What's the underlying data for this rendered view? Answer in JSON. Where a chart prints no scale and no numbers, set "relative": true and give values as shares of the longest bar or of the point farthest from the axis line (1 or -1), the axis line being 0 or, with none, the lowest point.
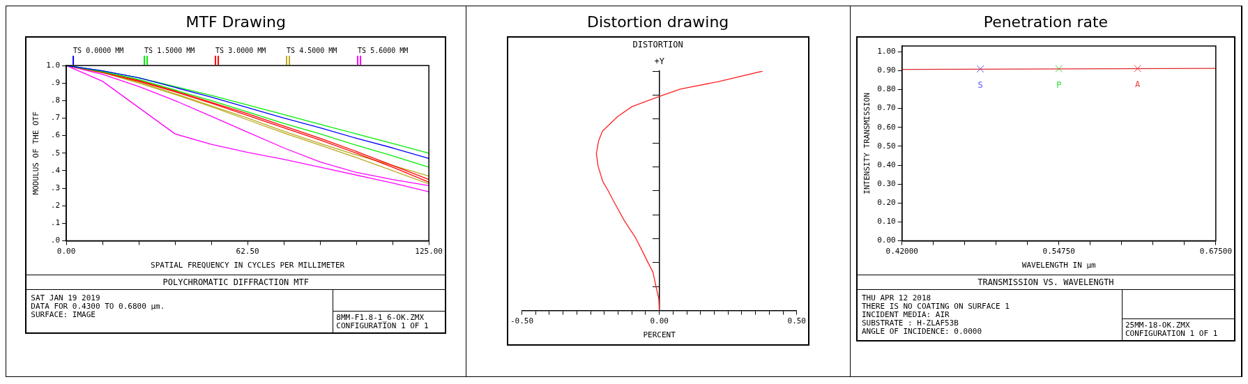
{
  "chart_data": [
    {
      "type": "line",
      "title": "MTF Drawing",
      "subtitle": "POLYCHROMATIC DIFFRACTION MTF",
      "xlabel": "SPATIAL FREQUENCY IN CYCLES PER MILLIMETER",
      "ylabel": "MODULUS OF THE OTF",
      "x": [
        0,
        12.5,
        25,
        37.5,
        50,
        62.5,
        75,
        87.5,
        100,
        112.5,
        125
      ],
      "series": [
        {
          "name": "TS 0.0000 MM",
          "color": "#0000ff",
          "values": [
            1,
            0.97,
            0.93,
            0.875,
            0.82,
            0.76,
            0.7,
            0.645,
            0.585,
            0.53,
            0.47
          ]
        },
        {
          "name": "TS 1.5000 MM",
          "color": "#00ee00",
          "values": [
            1,
            0.97,
            0.93,
            0.88,
            0.83,
            0.775,
            0.72,
            0.665,
            0.61,
            0.555,
            0.5
          ]
        },
        {
          "color": "#00ee00",
          "values": [
            1,
            0.965,
            0.92,
            0.86,
            0.8,
            0.735,
            0.67,
            0.61,
            0.545,
            0.485,
            0.42
          ]
        },
        {
          "name": "TS 3.0000 MM",
          "color": "#ff0000",
          "values": [
            1,
            0.965,
            0.915,
            0.855,
            0.79,
            0.725,
            0.655,
            0.585,
            0.51,
            0.43,
            0.35
          ]
        },
        {
          "color": "#ff0000",
          "values": [
            1,
            0.96,
            0.91,
            0.85,
            0.785,
            0.715,
            0.645,
            0.575,
            0.5,
            0.42,
            0.335
          ]
        },
        {
          "name": "TS 4.5000 MM",
          "color": "#bbaa22",
          "values": [
            1,
            0.96,
            0.905,
            0.84,
            0.77,
            0.7,
            0.625,
            0.555,
            0.49,
            0.43,
            0.37
          ]
        },
        {
          "color": "#bbaa22",
          "values": [
            1,
            0.96,
            0.9,
            0.835,
            0.765,
            0.69,
            0.615,
            0.545,
            0.475,
            0.4,
            0.325
          ]
        },
        {
          "name": "TS 5.6000 MM",
          "color": "#ff00ff",
          "values": [
            1,
            0.95,
            0.88,
            0.8,
            0.71,
            0.62,
            0.53,
            0.45,
            0.39,
            0.35,
            0.315
          ]
        },
        {
          "color": "#ff00ff",
          "values": [
            1,
            0.91,
            0.76,
            0.61,
            0.55,
            0.505,
            0.465,
            0.42,
            0.375,
            0.33,
            0.28
          ]
        }
      ],
      "xlim": [
        0,
        125
      ],
      "xticks": [
        {
          "value": 0,
          "label": "0.00"
        },
        {
          "value": 12.5,
          "label": null
        },
        {
          "value": 25,
          "label": null
        },
        {
          "value": 37.5,
          "label": null
        },
        {
          "value": 50,
          "label": null
        },
        {
          "value": 62.5,
          "label": "62.50"
        },
        {
          "value": 75,
          "label": null
        },
        {
          "value": 87.5,
          "label": null
        },
        {
          "value": 100,
          "label": null
        },
        {
          "value": 112.5,
          "label": null
        },
        {
          "value": 125,
          "label": "125.00"
        }
      ],
      "ylim": [
        0,
        1
      ],
      "yticks": [
        {
          "value": 0,
          "label": ".0"
        },
        {
          "value": 0.1,
          "label": ".1"
        },
        {
          "value": 0.2,
          "label": ".2"
        },
        {
          "value": 0.3,
          "label": ".3"
        },
        {
          "value": 0.4,
          "label": ".4"
        },
        {
          "value": 0.5,
          "label": ".5"
        },
        {
          "value": 0.6,
          "label": ".6"
        },
        {
          "value": 0.7,
          "label": ".7"
        },
        {
          "value": 0.8,
          "label": ".8"
        },
        {
          "value": 0.9,
          "label": ".9"
        },
        {
          "value": 1,
          "label": "1.0"
        }
      ],
      "legend": "top",
      "annotations": [
        "SAT JAN 19 2019",
        "DATA FOR 0.4300 TO 0.6800 µm.",
        "SURFACE: IMAGE",
        "8MM-F1.8-1_6-OK.ZMX",
        "CONFIGURATION 1 OF 1"
      ]
    },
    {
      "type": "line",
      "title": "Distortion drawing",
      "subtitle": "DISTORTION",
      "xlabel": "PERCENT",
      "ylabel": "+Y",
      "relative": true,
      "series": [
        {
          "color": "#ff2020",
          "x": [
            0,
            -0.002,
            -0.012,
            -0.023,
            -0.041,
            -0.058,
            -0.087,
            -0.128,
            -0.163,
            -0.186,
            -0.206,
            -0.223,
            -0.229,
            -0.221,
            -0.207,
            -0.151,
            -0.099,
            0,
            0.076,
            0.215,
            0.376
          ],
          "values": [
            0,
            0.05,
            0.1,
            0.16,
            0.2,
            0.24,
            0.305,
            0.377,
            0.45,
            0.5,
            0.54,
            0.604,
            0.656,
            0.708,
            0.749,
            0.811,
            0.852,
            0.894,
            0.925,
            0.956,
            1
          ]
        }
      ],
      "xlim": [
        -0.5,
        0.5
      ],
      "xticks": [
        {
          "value": -0.5,
          "label": "-0.50"
        },
        {
          "value": -0.45,
          "label": null
        },
        {
          "value": -0.4,
          "label": null
        },
        {
          "value": -0.35,
          "label": null
        },
        {
          "value": -0.3,
          "label": null
        },
        {
          "value": -0.25,
          "label": null
        },
        {
          "value": -0.2,
          "label": null
        },
        {
          "value": -0.15,
          "label": null
        },
        {
          "value": -0.1,
          "label": null
        },
        {
          "value": -0.05,
          "label": null
        },
        {
          "value": 0,
          "label": "0.00"
        },
        {
          "value": 0.05,
          "label": null
        },
        {
          "value": 0.1,
          "label": null
        },
        {
          "value": 0.15,
          "label": null
        },
        {
          "value": 0.2,
          "label": null
        },
        {
          "value": 0.25,
          "label": null
        },
        {
          "value": 0.3,
          "label": null
        },
        {
          "value": 0.35,
          "label": null
        },
        {
          "value": 0.4,
          "label": null
        },
        {
          "value": 0.45,
          "label": null
        },
        {
          "value": 0.5,
          "label": "0.50"
        }
      ]
    },
    {
      "type": "line",
      "title": "Penetration rate",
      "subtitle": "TRANSMISSION VS. WAVELENGTH",
      "xlabel": "WAVELENGTH IN µm",
      "ylabel": "INTENSITY TRANSMISSION",
      "series": [
        {
          "color": "#e02828",
          "x": [
            0.42,
            0.675
          ],
          "values": [
            0.906,
            0.912
          ]
        },
        {
          "type": "scatter",
          "name": "S",
          "color": "#5555ff",
          "marker": "cross",
          "x": [
            0.4837
          ],
          "values": [
            0.909
          ]
        },
        {
          "type": "scatter",
          "name": "P",
          "color": "#33dd33",
          "marker": "cross",
          "x": [
            0.5475
          ],
          "values": [
            0.91
          ]
        },
        {
          "type": "scatter",
          "name": "A",
          "color": "#ee4444",
          "marker": "cross",
          "x": [
            0.6115
          ],
          "values": [
            0.911
          ]
        }
      ],
      "xlim": [
        0.42,
        0.675
      ],
      "xticks": [
        {
          "value": 0.42,
          "label": "0.42000"
        },
        {
          "value": 0.4455,
          "label": null
        },
        {
          "value": 0.471,
          "label": null
        },
        {
          "value": 0.4965,
          "label": null
        },
        {
          "value": 0.522,
          "label": null
        },
        {
          "value": 0.5475,
          "label": "0.54750"
        },
        {
          "value": 0.573,
          "label": null
        },
        {
          "value": 0.5985,
          "label": null
        },
        {
          "value": 0.624,
          "label": null
        },
        {
          "value": 0.6495,
          "label": null
        },
        {
          "value": 0.675,
          "label": "0.67500"
        }
      ],
      "ylim": [
        0,
        1.03
      ],
      "yticks": [
        {
          "value": 0,
          "label": "0.00"
        },
        {
          "value": 0.1,
          "label": "0.10"
        },
        {
          "value": 0.2,
          "label": "0.20"
        },
        {
          "value": 0.3,
          "label": "0.30"
        },
        {
          "value": 0.4,
          "label": "0.40"
        },
        {
          "value": 0.5,
          "label": "0.50"
        },
        {
          "value": 0.6,
          "label": "0.60"
        },
        {
          "value": 0.7,
          "label": "0.70"
        },
        {
          "value": 0.8,
          "label": "0.80"
        },
        {
          "value": 0.9,
          "label": "0.90"
        },
        {
          "value": 1,
          "label": "1.00"
        }
      ],
      "annotations": [
        "THU APR 12 2018",
        "THERE IS NO COATING ON SURFACE 1",
        "INCIDENT MEDIA: AIR",
        "SUBSTRATE     : H-ZLAF53B",
        "ANGLE OF INCIDENCE: 0.0000",
        "25MM-18-OK.ZMX",
        "CONFIGURATION 1 OF 1"
      ]
    }
  ]
}
